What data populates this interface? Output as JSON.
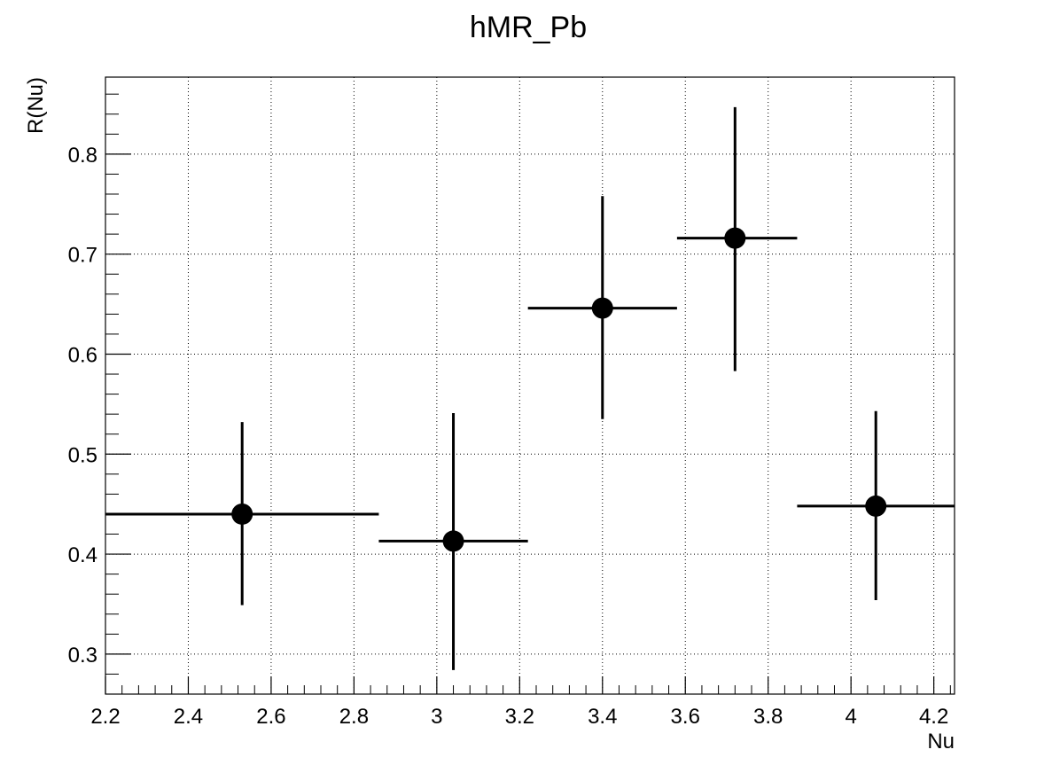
{
  "chart_data": {
    "type": "scatter",
    "title": "hMR_Pb",
    "xlabel": "Nu",
    "ylabel": "R(Nu)",
    "xlim": [
      2.2,
      4.25
    ],
    "ylim": [
      0.26,
      0.877
    ],
    "grid": true,
    "x_ticks": [
      2.2,
      2.4,
      2.6,
      2.8,
      3.0,
      3.2,
      3.4,
      3.6,
      3.8,
      4.0,
      4.2
    ],
    "x_tick_labels": [
      "2.2",
      "2.4",
      "2.6",
      "2.8",
      "3",
      "3.2",
      "3.4",
      "3.6",
      "3.8",
      "4",
      "4.2"
    ],
    "y_ticks": [
      0.3,
      0.4,
      0.5,
      0.6,
      0.7,
      0.8
    ],
    "y_tick_labels": [
      "0.3",
      "0.4",
      "0.5",
      "0.6",
      "0.7",
      "0.8"
    ],
    "series": [
      {
        "points": [
          {
            "x": 2.53,
            "y": 0.44,
            "xlow": 2.2,
            "xhigh": 2.86,
            "ylow": 0.349,
            "yhigh": 0.532
          },
          {
            "x": 3.04,
            "y": 0.413,
            "xlow": 2.86,
            "xhigh": 3.22,
            "ylow": 0.284,
            "yhigh": 0.541
          },
          {
            "x": 3.4,
            "y": 0.646,
            "xlow": 3.22,
            "xhigh": 3.58,
            "ylow": 0.535,
            "yhigh": 0.758
          },
          {
            "x": 3.72,
            "y": 0.716,
            "xlow": 3.58,
            "xhigh": 3.87,
            "ylow": 0.583,
            "yhigh": 0.847
          },
          {
            "x": 4.06,
            "y": 0.448,
            "xlow": 3.87,
            "xhigh": 4.25,
            "ylow": 0.354,
            "yhigh": 0.543
          }
        ]
      }
    ]
  }
}
